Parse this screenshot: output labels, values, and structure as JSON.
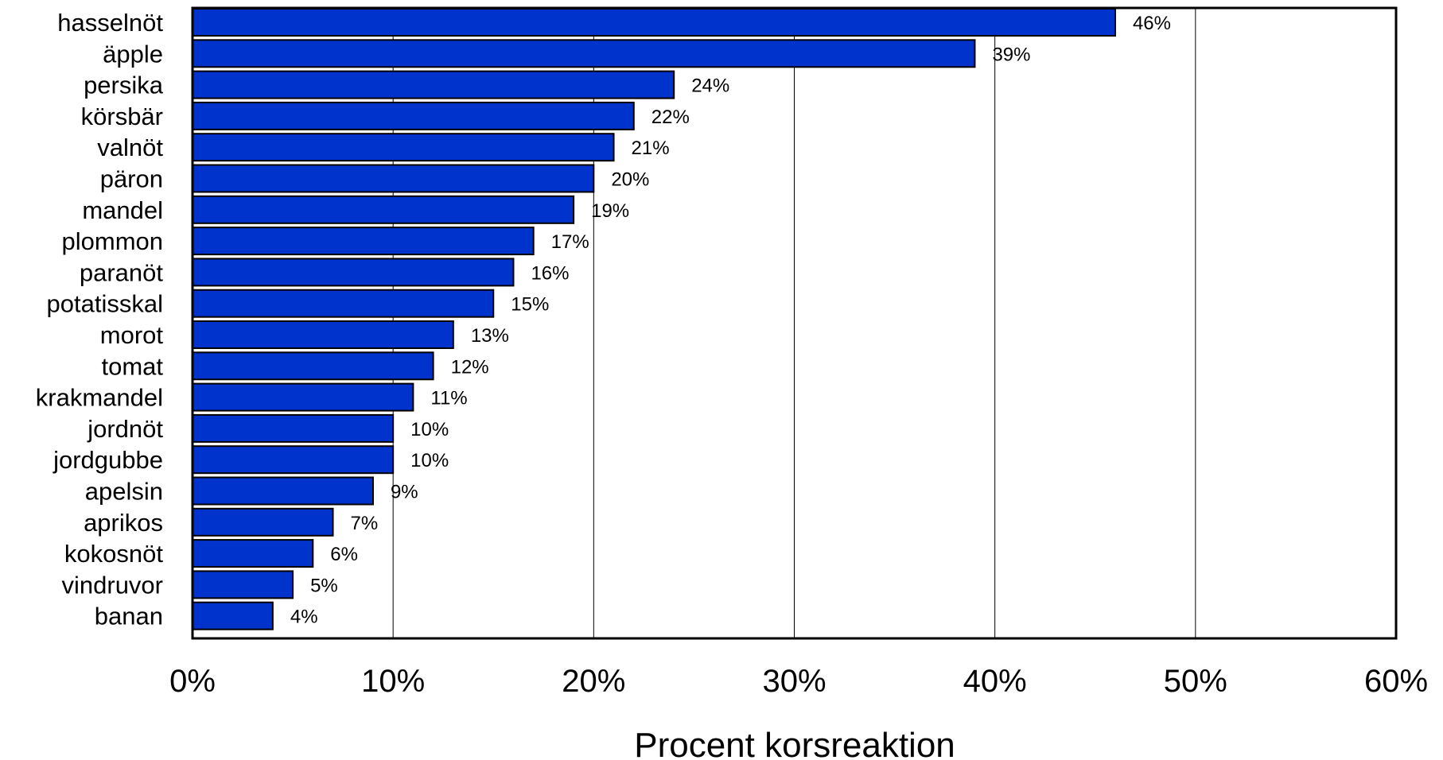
{
  "chart_data": {
    "type": "bar",
    "orientation": "horizontal",
    "categories": [
      "hasselnöt",
      "äpple",
      "persika",
      "körsbär",
      "valnöt",
      "päron",
      "mandel",
      "plommon",
      "paranöt",
      "potatisskal",
      "morot",
      "tomat",
      "krakmandel",
      "jordnöt",
      "jordgubbe",
      "apelsin",
      "aprikos",
      "kokosnöt",
      "vindruvor",
      "banan"
    ],
    "values": [
      46,
      39,
      24,
      22,
      21,
      20,
      19,
      17,
      16,
      15,
      13,
      12,
      11,
      10,
      10,
      9,
      7,
      6,
      5,
      4
    ],
    "value_labels": [
      "46%",
      "39%",
      "24%",
      "22%",
      "21%",
      "20%",
      "19%",
      "17%",
      "16%",
      "15%",
      "13%",
      "12%",
      "11%",
      "10%",
      "10%",
      "9%",
      "7%",
      "6%",
      "5%",
      "4%"
    ],
    "xlim": [
      0,
      60
    ],
    "xticks": [
      0,
      10,
      20,
      30,
      40,
      50,
      60
    ],
    "xtick_labels": [
      "0%",
      "10%",
      "20%",
      "30%",
      "40%",
      "50%",
      "60%"
    ],
    "xlabel": "Procent korsreaktion",
    "ylabel": "",
    "title": "",
    "grid": "vertical",
    "bar_color": "#0033CC",
    "bar_edge_color": "#000000",
    "grid_color": "#000000"
  }
}
